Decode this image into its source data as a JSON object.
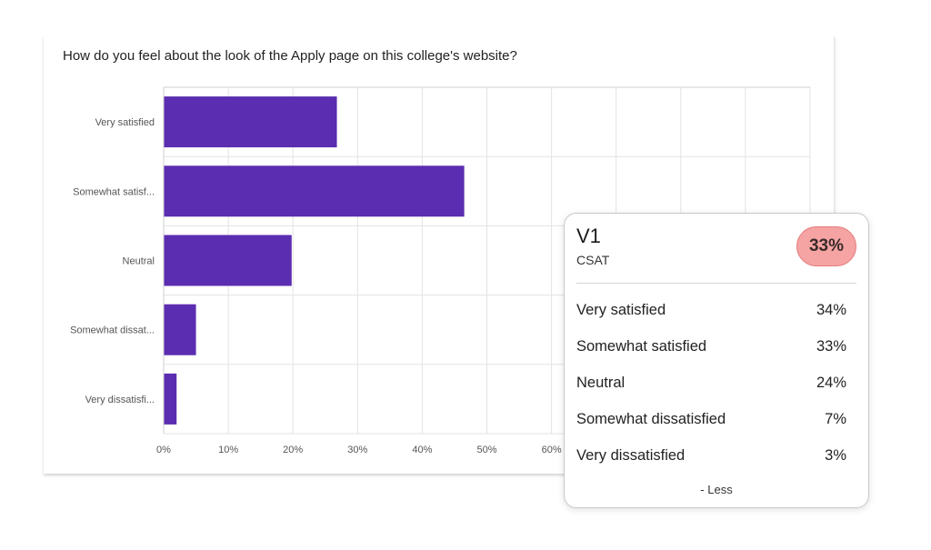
{
  "question": "How do you feel about the look of the Apply page on this college's website?",
  "chart_data": {
    "type": "bar",
    "orientation": "horizontal",
    "categories": [
      "Very satisfied",
      "Somewhat satisf...",
      "Neutral",
      "Somewhat dissat...",
      "Very dissatisfi..."
    ],
    "values": [
      26.8,
      46.5,
      19.8,
      5.0,
      2.0
    ],
    "xlim": [
      0,
      100
    ],
    "xticks": [
      "0%",
      "10%",
      "20%",
      "30%",
      "40%",
      "50%",
      "60%"
    ],
    "grid": true,
    "bar_color": "#5b2db0"
  },
  "popup": {
    "title": "V1",
    "subtitle": "CSAT",
    "score": "33%",
    "score_color": "#f5a3a3",
    "rows": [
      {
        "label": "Very satisfied",
        "value": "34%"
      },
      {
        "label": "Somewhat satisfied",
        "value": "33%"
      },
      {
        "label": "Neutral",
        "value": "24%"
      },
      {
        "label": "Somewhat dissatisfied",
        "value": "7%"
      },
      {
        "label": "Very dissatisfied",
        "value": "3%"
      }
    ],
    "less_label": "- Less"
  }
}
